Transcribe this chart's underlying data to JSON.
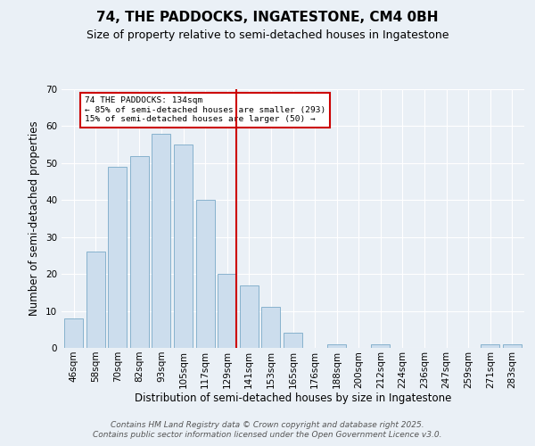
{
  "title": "74, THE PADDOCKS, INGATESTONE, CM4 0BH",
  "subtitle": "Size of property relative to semi-detached houses in Ingatestone",
  "xlabel": "Distribution of semi-detached houses by size in Ingatestone",
  "ylabel": "Number of semi-detached properties",
  "categories": [
    "46sqm",
    "58sqm",
    "70sqm",
    "82sqm",
    "93sqm",
    "105sqm",
    "117sqm",
    "129sqm",
    "141sqm",
    "153sqm",
    "165sqm",
    "176sqm",
    "188sqm",
    "200sqm",
    "212sqm",
    "224sqm",
    "236sqm",
    "247sqm",
    "259sqm",
    "271sqm",
    "283sqm"
  ],
  "values": [
    8,
    26,
    49,
    52,
    58,
    55,
    40,
    20,
    17,
    11,
    4,
    0,
    1,
    0,
    1,
    0,
    0,
    0,
    0,
    1,
    1
  ],
  "bar_color": "#ccdded",
  "bar_edge_color": "#7aaac8",
  "ylim": [
    0,
    70
  ],
  "vline_x_index": 7,
  "vline_color": "#cc0000",
  "annotation_text": "74 THE PADDOCKS: 134sqm\n← 85% of semi-detached houses are smaller (293)\n15% of semi-detached houses are larger (50) →",
  "annotation_box_color": "#ffffff",
  "annotation_box_edge_color": "#cc0000",
  "footer_line1": "Contains HM Land Registry data © Crown copyright and database right 2025.",
  "footer_line2": "Contains public sector information licensed under the Open Government Licence v3.0.",
  "background_color": "#eaf0f6",
  "title_fontsize": 11,
  "subtitle_fontsize": 9,
  "axis_label_fontsize": 8.5,
  "tick_fontsize": 7.5,
  "footer_fontsize": 6.5
}
